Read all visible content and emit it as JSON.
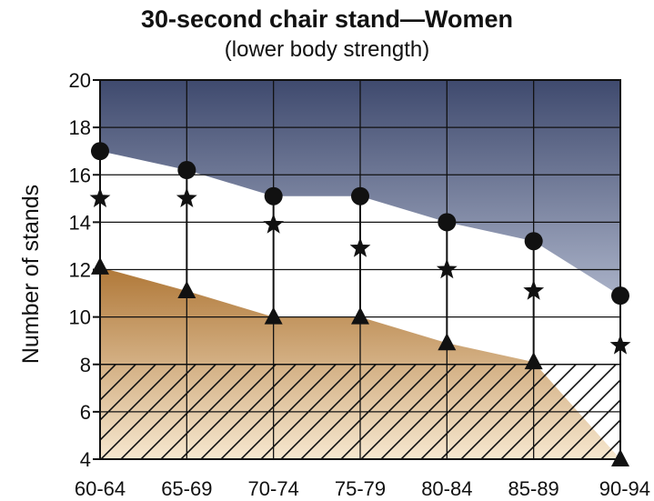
{
  "chart_data": {
    "type": "line",
    "title": "30-second chair stand—Women",
    "subtitle": "(lower body strength)",
    "xlabel": "",
    "ylabel": "Number of stands",
    "categories": [
      "60-64",
      "65-69",
      "70-74",
      "75-79",
      "80-84",
      "85-89",
      "90-94"
    ],
    "ylim": [
      4,
      20
    ],
    "yticks": [
      4,
      6,
      8,
      10,
      12,
      14,
      16,
      18,
      20
    ],
    "grid": true,
    "series": [
      {
        "marker": "circle",
        "values": [
          17,
          16.2,
          15.1,
          15.1,
          14,
          13.2,
          10.9
        ]
      },
      {
        "marker": "star",
        "values": [
          15,
          15,
          13.9,
          12.9,
          12,
          11.1,
          8.8
        ]
      },
      {
        "marker": "triangle",
        "values": [
          12.1,
          11.1,
          10,
          10,
          8.9,
          8.1,
          4
        ]
      }
    ],
    "hatched_band": [
      4,
      8
    ],
    "colors": {
      "upper_region_top": "#3f4a6e",
      "upper_region_bottom": "#a9b1c7",
      "middle_region": "#ffffff",
      "lower_region_top": "#b07838",
      "lower_region_bottom": "#f6e7cf",
      "grid": "#111111"
    }
  }
}
